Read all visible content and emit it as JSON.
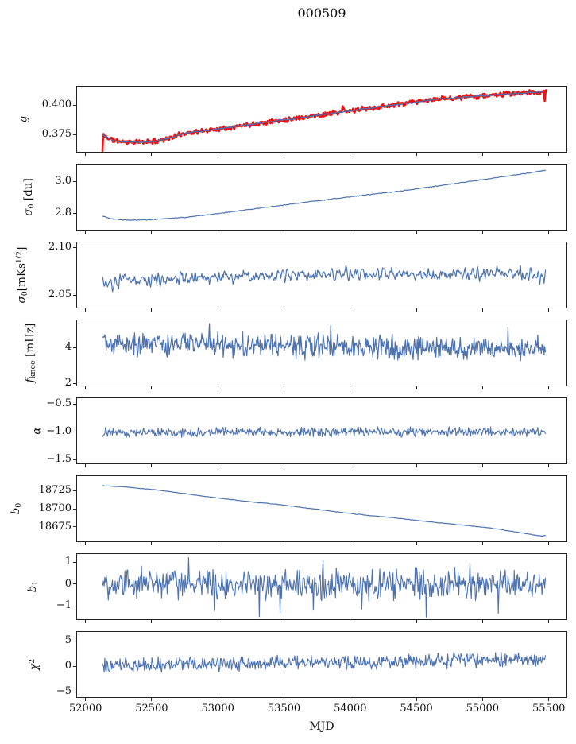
{
  "chart_data": {
    "type": "line",
    "title": "000509",
    "xlabel": "MJD",
    "xlim": [
      51930,
      55640
    ],
    "x_ticks": [
      52000,
      52500,
      53000,
      53500,
      54000,
      54500,
      55000,
      55500
    ],
    "x_tick_labels": [
      "52000",
      "52500",
      "53000",
      "53500",
      "54000",
      "54500",
      "55000",
      "55500"
    ],
    "n_points": 640,
    "grid": false,
    "legend": "none",
    "colors": {
      "line": "#4c72b0",
      "raw": "#ee1111",
      "spine": "#222222",
      "text": "#111111"
    },
    "panels": [
      {
        "name": "gain",
        "ylabel": "g",
        "ylabel_parts": [
          {
            "t": "g",
            "s": "i"
          }
        ],
        "ylim": [
          0.3595,
          0.4165
        ],
        "yticks": [
          {
            "v": 0.4,
            "label": "0.400"
          },
          {
            "v": 0.375,
            "label": "0.375"
          }
        ],
        "label_x": 30,
        "series": [
          {
            "name": "gain-raw",
            "color": "#ee1111",
            "width": 2.6,
            "seed": 11,
            "noise": 0.0012,
            "anchors": [
              [
                52128,
                0.3608
              ],
              [
                52131,
                0.375
              ],
              [
                52160,
                0.3726
              ],
              [
                52220,
                0.3697
              ],
              [
                52300,
                0.3687
              ],
              [
                52400,
                0.3684
              ],
              [
                52520,
                0.3692
              ],
              [
                52650,
                0.3722
              ],
              [
                52730,
                0.3757
              ],
              [
                53000,
                0.3798
              ],
              [
                53250,
                0.3837
              ],
              [
                53500,
                0.3875
              ],
              [
                53750,
                0.3913
              ],
              [
                53930,
                0.3941
              ],
              [
                53945,
                0.3978
              ],
              [
                53960,
                0.3944
              ],
              [
                54000,
                0.3952
              ],
              [
                54300,
                0.3998
              ],
              [
                54500,
                0.4028
              ],
              [
                54666,
                0.4053
              ],
              [
                54900,
                0.4072
              ],
              [
                55150,
                0.4093
              ],
              [
                55300,
                0.4104
              ],
              [
                55430,
                0.4111
              ],
              [
                55466,
                0.4113
              ],
              [
                55480,
                0.4113
              ]
            ],
            "spikes": [
              [
                55472,
                0.4036
              ]
            ]
          },
          {
            "name": "gain-smoothed",
            "color": "#4c72b0",
            "width": 1.4,
            "seed": 12,
            "noise": 0.0006,
            "ma": 3,
            "anchors": [
              [
                52131,
                0.375
              ],
              [
                52160,
                0.3726
              ],
              [
                52220,
                0.3697
              ],
              [
                52300,
                0.3687
              ],
              [
                52400,
                0.3684
              ],
              [
                52520,
                0.3692
              ],
              [
                52650,
                0.3722
              ],
              [
                52730,
                0.3757
              ],
              [
                53000,
                0.3798
              ],
              [
                53250,
                0.3837
              ],
              [
                53500,
                0.3875
              ],
              [
                53750,
                0.3913
              ],
              [
                54000,
                0.3952
              ],
              [
                54300,
                0.3998
              ],
              [
                54500,
                0.4028
              ],
              [
                54666,
                0.4053
              ],
              [
                54900,
                0.4072
              ],
              [
                55150,
                0.4093
              ],
              [
                55300,
                0.4104
              ],
              [
                55455,
                0.4113
              ]
            ]
          }
        ]
      },
      {
        "name": "sigma0-du",
        "ylabel": "σ₀ [du]",
        "ylabel_parts": [
          {
            "t": "σ",
            "s": "i"
          },
          {
            "t": "0",
            "s": "sub"
          },
          {
            "t": " [du]",
            "s": "u"
          }
        ],
        "ylim": [
          2.69,
          3.11
        ],
        "yticks": [
          {
            "v": 3.0,
            "label": "3.0"
          },
          {
            "v": 2.8,
            "label": "2.8"
          }
        ],
        "label_x": 38,
        "series": [
          {
            "name": "sigma0-du-series",
            "color": "#4c72b0",
            "width": 1.2,
            "seed": 21,
            "noise": 0.0022,
            "ma": 2,
            "anchors": [
              [
                52130,
                2.781
              ],
              [
                52200,
                2.7625
              ],
              [
                52320,
                2.7555
              ],
              [
                52450,
                2.7565
              ],
              [
                52600,
                2.7635
              ],
              [
                52800,
                2.777
              ],
              [
                53000,
                2.797
              ],
              [
                53200,
                2.818
              ],
              [
                53400,
                2.84
              ],
              [
                53600,
                2.861
              ],
              [
                53800,
                2.882
              ],
              [
                54000,
                2.902
              ],
              [
                54200,
                2.921
              ],
              [
                54400,
                2.94
              ],
              [
                54700,
                2.9745
              ],
              [
                55000,
                3.01
              ],
              [
                55200,
                3.0335
              ],
              [
                55350,
                3.052
              ],
              [
                55475,
                3.0685
              ]
            ]
          }
        ]
      },
      {
        "name": "sigma0-mK",
        "ylabel": "σ₀[mKs¹ᐟ²]",
        "ylabel_parts": [
          {
            "t": "σ",
            "s": "i"
          },
          {
            "t": "0",
            "s": "sub"
          },
          {
            "t": "[mKs",
            "s": "u"
          },
          {
            "t": "1/2",
            "s": "sup"
          },
          {
            "t": "]",
            "s": "u"
          }
        ],
        "ylim": [
          2.036,
          2.106
        ],
        "yticks": [
          {
            "v": 2.1,
            "label": "2.10"
          },
          {
            "v": 2.05,
            "label": "2.05"
          }
        ],
        "label_x": 28,
        "series": [
          {
            "name": "sigma0-mK-series",
            "color": "#4c72b0",
            "width": 1.2,
            "seed": 31,
            "noise": 0.006,
            "ma": 2,
            "anchors": [
              [
                52130,
                2.0625
              ],
              [
                52190,
                2.0585
              ],
              [
                52280,
                2.0655
              ],
              [
                52400,
                2.0662
              ],
              [
                52600,
                2.0678
              ],
              [
                52900,
                2.0692
              ],
              [
                53200,
                2.07
              ],
              [
                53600,
                2.0705
              ],
              [
                54000,
                2.071
              ],
              [
                54400,
                2.0713
              ],
              [
                54800,
                2.0718
              ],
              [
                55100,
                2.0733
              ],
              [
                55250,
                2.0722
              ],
              [
                55380,
                2.0695
              ],
              [
                55475,
                2.0688
              ]
            ]
          }
        ]
      },
      {
        "name": "fknee",
        "ylabel": "fknee [mHz]",
        "ylabel_parts": [
          {
            "t": "f",
            "s": "i"
          },
          {
            "t": "knee",
            "s": "sub"
          },
          {
            "t": " [mHz]",
            "s": "u"
          }
        ],
        "ylim": [
          1.82,
          5.56
        ],
        "yticks": [
          {
            "v": 4,
            "label": "4"
          },
          {
            "v": 2,
            "label": "2"
          }
        ],
        "label_x": 40,
        "series": [
          {
            "name": "fknee-series",
            "color": "#4c72b0",
            "width": 1.2,
            "seed": 41,
            "noise": 0.4,
            "spiky": true,
            "anchors": [
              [
                52130,
                4.28
              ],
              [
                52400,
                4.22
              ],
              [
                52800,
                4.17
              ],
              [
                53200,
                4.12
              ],
              [
                53600,
                4.08
              ],
              [
                54000,
                4.04
              ],
              [
                54400,
                4.0
              ],
              [
                54800,
                3.97
              ],
              [
                55200,
                3.95
              ],
              [
                55475,
                3.94
              ]
            ]
          }
        ]
      },
      {
        "name": "alpha",
        "ylabel": "α",
        "ylabel_parts": [
          {
            "t": "α",
            "s": "i"
          }
        ],
        "ylim": [
          -1.586,
          -0.386
        ],
        "yticks": [
          {
            "v": -0.5,
            "label": "−0.5"
          },
          {
            "v": -1.0,
            "label": "−1.0"
          },
          {
            "v": -1.5,
            "label": "−1.5"
          }
        ],
        "label_x": 47,
        "series": [
          {
            "name": "alpha-series",
            "color": "#4c72b0",
            "width": 1.1,
            "seed": 51,
            "noise": 0.05,
            "anchors": [
              [
                52130,
                -1.013
              ],
              [
                53000,
                -1.01
              ],
              [
                54000,
                -1.006
              ],
              [
                55475,
                -1.005
              ]
            ]
          }
        ]
      },
      {
        "name": "b0",
        "ylabel": "b₀",
        "ylabel_parts": [
          {
            "t": "b",
            "s": "i"
          },
          {
            "t": "0",
            "s": "sub"
          }
        ],
        "ylim": [
          18654,
          18746
        ],
        "yticks": [
          {
            "v": 18725,
            "label": "18725"
          },
          {
            "v": 18700,
            "label": "18700"
          },
          {
            "v": 18675,
            "label": "18675"
          }
        ],
        "label_x": 22,
        "series": [
          {
            "name": "b0-series",
            "color": "#4c72b0",
            "width": 1.2,
            "seed": 61,
            "noise": 0.35,
            "ma": 3,
            "anchors": [
              [
                52130,
                18731.5
              ],
              [
                52300,
                18730.0
              ],
              [
                52500,
                18726.5
              ],
              [
                52700,
                18722.0
              ],
              [
                52900,
                18717.0
              ],
              [
                53100,
                18712.5
              ],
              [
                53300,
                18708.5
              ],
              [
                53450,
                18706.0
              ],
              [
                53600,
                18702.5
              ],
              [
                53800,
                18698.0
              ],
              [
                54000,
                18693.5
              ],
              [
                54150,
                18690.5
              ],
              [
                54300,
                18688.0
              ],
              [
                54500,
                18684.0
              ],
              [
                54700,
                18680.0
              ],
              [
                54900,
                18676.5
              ],
              [
                55050,
                18673.5
              ],
              [
                55200,
                18669.5
              ],
              [
                55320,
                18666.0
              ],
              [
                55420,
                18663.0
              ],
              [
                55450,
                18662.3
              ],
              [
                55475,
                18663.0
              ]
            ]
          }
        ]
      },
      {
        "name": "b1",
        "ylabel": "b₁",
        "ylabel_parts": [
          {
            "t": "b",
            "s": "i"
          },
          {
            "t": "1",
            "s": "sub"
          }
        ],
        "ylim": [
          -1.65,
          1.4
        ],
        "yticks": [
          {
            "v": 1,
            "label": "1"
          },
          {
            "v": 0,
            "label": "0"
          },
          {
            "v": -1,
            "label": "−1"
          }
        ],
        "label_x": 43,
        "series": [
          {
            "name": "b1-series",
            "color": "#4c72b0",
            "width": 1.1,
            "seed": 71,
            "noise": 0.4,
            "spiky": true,
            "anchors": [
              [
                52130,
                0.0
              ],
              [
                55475,
                0.0
              ]
            ],
            "spikes": [
              [
                53794,
                1.05
              ],
              [
                54576,
                -1.52
              ],
              [
                55117,
                -1.35
              ]
            ]
          }
        ]
      },
      {
        "name": "chi2",
        "ylabel": "χ²",
        "ylabel_parts": [
          {
            "t": "χ",
            "s": "i"
          },
          {
            "t": "2",
            "s": "sup"
          }
        ],
        "ylim": [
          -6.25,
          6.88
        ],
        "yticks": [
          {
            "v": 5,
            "label": "5"
          },
          {
            "v": 0,
            "label": "0"
          },
          {
            "v": -5,
            "label": "−5"
          }
        ],
        "label_x": 42,
        "series": [
          {
            "name": "chi2-series",
            "color": "#4c72b0",
            "width": 1.1,
            "seed": 81,
            "noise": 0.85,
            "anchors": [
              [
                52130,
                0.15
              ],
              [
                52600,
                0.3
              ],
              [
                53200,
                0.5
              ],
              [
                53800,
                0.7
              ],
              [
                54400,
                0.95
              ],
              [
                55000,
                1.2
              ],
              [
                55475,
                1.35
              ]
            ]
          }
        ]
      }
    ]
  }
}
